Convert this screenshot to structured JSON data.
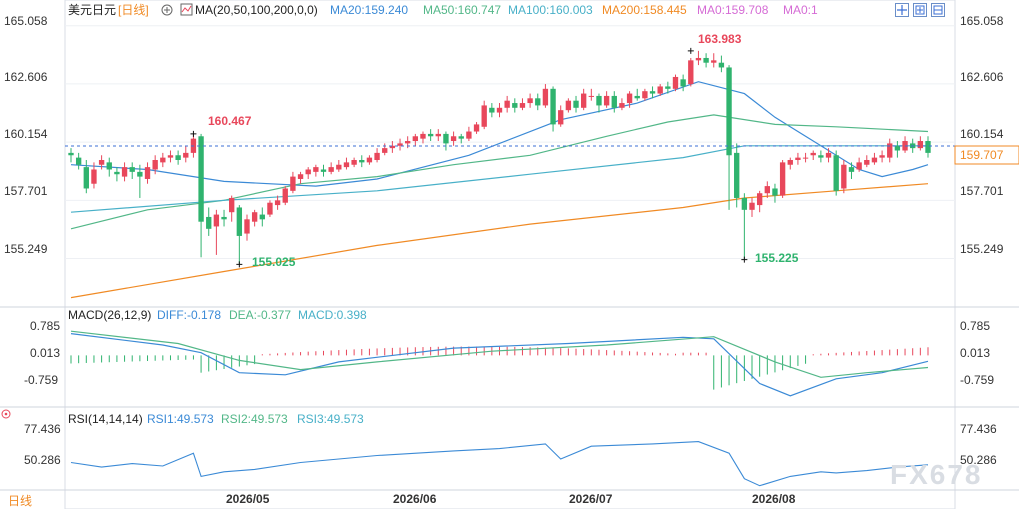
{
  "header": {
    "symbol": "美元日元",
    "period": "[日线]",
    "ma_label": "MA(20,50,100,200,0,0)",
    "ma20": "MA20:159.240",
    "ma50": "MA50:160.747",
    "ma100": "MA100:160.003",
    "ma200": "MA200:158.445",
    "ma0a": "MA0:159.708",
    "ma0b": "MA0:1"
  },
  "macd": {
    "label": "MACD(26,12,9)",
    "diff": "DIFF:-0.178",
    "dea": "DEA:-0.377",
    "macd": "MACD:0.398",
    "ticks": [
      "0.785",
      "0.013",
      "-0.759"
    ]
  },
  "rsi": {
    "label": "RSI(14,14,14)",
    "rsi1": "RSI1:49.573",
    "rsi2": "RSI2:49.573",
    "rsi3": "RSI3:49.573",
    "ticks": [
      "77.436",
      "50.286"
    ]
  },
  "footer": {
    "period_tab": "日线",
    "watermark": "FX678"
  },
  "colors": {
    "up": "#e8475b",
    "down": "#2fb36e",
    "ma20": "#3b8ad6",
    "ma50": "#52b788",
    "ma100": "#48b0c8",
    "ma200": "#f08a24",
    "current": "#f08a24"
  },
  "chart_data": {
    "type": "candlestick",
    "y_ticks": [
      "165.058",
      "162.606",
      "160.154",
      "157.701",
      "155.249"
    ],
    "y_range": [
      153.5,
      165.3
    ],
    "x_labels": [
      "2026/05",
      "2026/06",
      "2026/07",
      "2026/08"
    ],
    "current_price": "159.707",
    "annotations": {
      "high": "163.983",
      "low1": "155.025",
      "low2": "155.225",
      "mark1": "160.467"
    },
    "candles": [
      [
        159.7,
        159.6,
        159.9,
        159.3
      ],
      [
        159.5,
        159.2,
        159.7,
        159.0
      ],
      [
        159.1,
        158.2,
        159.4,
        158.0
      ],
      [
        158.4,
        159.0,
        159.3,
        158.2
      ],
      [
        159.2,
        159.4,
        159.6,
        159.0
      ],
      [
        159.3,
        159.0,
        159.5,
        158.7
      ],
      [
        158.9,
        158.8,
        159.1,
        158.5
      ],
      [
        158.7,
        159.1,
        159.3,
        158.5
      ],
      [
        159.1,
        158.9,
        159.3,
        158.6
      ],
      [
        158.9,
        158.7,
        159.2,
        157.8
      ],
      [
        158.6,
        159.1,
        159.3,
        158.4
      ],
      [
        159.0,
        159.4,
        159.6,
        158.8
      ],
      [
        159.3,
        159.5,
        159.7,
        159.1
      ],
      [
        159.5,
        159.6,
        159.8,
        159.3
      ],
      [
        159.6,
        159.4,
        159.8,
        159.2
      ],
      [
        159.5,
        159.7,
        160.0,
        159.3
      ],
      [
        159.7,
        160.3,
        160.5,
        159.5
      ],
      [
        160.4,
        156.8,
        160.5,
        155.3
      ],
      [
        157.0,
        156.5,
        157.4,
        156.2
      ],
      [
        156.6,
        157.1,
        157.3,
        155.4
      ],
      [
        157.0,
        156.9,
        157.3,
        156.6
      ],
      [
        157.2,
        157.8,
        157.9,
        156.8
      ],
      [
        157.4,
        156.2,
        157.5,
        155.0
      ],
      [
        156.3,
        156.9,
        157.1,
        156.0
      ],
      [
        156.8,
        157.2,
        157.3,
        156.6
      ],
      [
        157.1,
        156.9,
        157.4,
        156.6
      ],
      [
        157.1,
        157.6,
        157.7,
        157.0
      ],
      [
        157.5,
        157.7,
        157.9,
        157.3
      ],
      [
        157.6,
        158.2,
        158.3,
        157.5
      ],
      [
        158.1,
        158.7,
        158.9,
        158.0
      ],
      [
        158.6,
        158.8,
        158.9,
        158.4
      ],
      [
        158.8,
        159.0,
        159.1,
        158.6
      ],
      [
        158.9,
        159.1,
        159.2,
        158.7
      ],
      [
        159.0,
        158.9,
        159.2,
        158.7
      ],
      [
        158.9,
        159.1,
        159.3,
        158.8
      ],
      [
        159.0,
        159.2,
        159.4,
        158.9
      ],
      [
        159.1,
        159.3,
        159.5,
        159.0
      ],
      [
        159.2,
        159.4,
        159.5,
        159.1
      ],
      [
        159.4,
        159.3,
        159.6,
        159.1
      ],
      [
        159.3,
        159.5,
        159.6,
        159.2
      ],
      [
        159.4,
        159.7,
        159.9,
        159.3
      ],
      [
        159.7,
        159.9,
        160.1,
        159.6
      ],
      [
        159.9,
        160.0,
        160.2,
        159.7
      ],
      [
        160.0,
        160.1,
        160.3,
        159.8
      ],
      [
        160.1,
        160.2,
        160.4,
        159.9
      ],
      [
        160.2,
        160.4,
        160.5,
        160.0
      ],
      [
        160.3,
        160.5,
        160.6,
        160.1
      ],
      [
        160.5,
        160.4,
        160.7,
        160.2
      ],
      [
        160.4,
        160.5,
        160.7,
        160.2
      ],
      [
        160.5,
        160.1,
        160.6,
        159.8
      ],
      [
        160.2,
        160.4,
        160.6,
        160.0
      ],
      [
        160.4,
        160.3,
        160.5,
        160.1
      ],
      [
        160.3,
        160.6,
        160.8,
        160.2
      ],
      [
        160.6,
        160.9,
        161.0,
        160.5
      ],
      [
        160.8,
        161.7,
        161.9,
        160.7
      ],
      [
        161.6,
        161.4,
        161.8,
        161.2
      ],
      [
        161.4,
        161.6,
        161.8,
        161.2
      ],
      [
        161.6,
        161.9,
        162.1,
        161.4
      ],
      [
        161.8,
        161.6,
        162.0,
        161.4
      ],
      [
        161.6,
        161.8,
        162.0,
        161.5
      ],
      [
        161.8,
        162.0,
        162.2,
        161.6
      ],
      [
        162.0,
        161.7,
        162.2,
        161.5
      ],
      [
        161.7,
        162.4,
        162.6,
        161.6
      ],
      [
        162.4,
        160.9,
        162.5,
        160.6
      ],
      [
        160.9,
        161.5,
        161.7,
        160.8
      ],
      [
        161.5,
        161.9,
        162.0,
        161.4
      ],
      [
        161.9,
        161.6,
        162.1,
        161.4
      ],
      [
        161.6,
        162.2,
        162.4,
        161.5
      ],
      [
        162.1,
        162.1,
        162.4,
        161.9
      ],
      [
        162.1,
        161.7,
        162.2,
        161.4
      ],
      [
        161.7,
        162.1,
        162.3,
        161.6
      ],
      [
        162.1,
        161.6,
        162.3,
        161.4
      ],
      [
        161.6,
        161.8,
        162.0,
        161.5
      ],
      [
        161.8,
        162.2,
        162.3,
        161.6
      ],
      [
        162.1,
        162.0,
        162.4,
        161.9
      ],
      [
        162.0,
        162.3,
        162.4,
        161.9
      ],
      [
        162.3,
        162.2,
        162.5,
        162.0
      ],
      [
        162.2,
        162.5,
        162.6,
        162.1
      ],
      [
        162.5,
        162.4,
        162.7,
        162.2
      ],
      [
        162.4,
        162.9,
        163.0,
        162.3
      ],
      [
        162.8,
        162.5,
        163.0,
        162.3
      ],
      [
        162.6,
        163.6,
        163.7,
        162.5
      ],
      [
        163.6,
        163.7,
        164.0,
        163.4
      ],
      [
        163.7,
        163.5,
        163.9,
        163.3
      ],
      [
        163.5,
        163.6,
        163.9,
        163.3
      ],
      [
        163.5,
        163.3,
        163.8,
        163.1
      ],
      [
        163.3,
        159.6,
        163.4,
        157.3
      ],
      [
        159.7,
        157.8,
        160.1,
        157.4
      ],
      [
        157.8,
        157.3,
        158.0,
        155.2
      ],
      [
        157.3,
        157.6,
        157.8,
        157.0
      ],
      [
        157.5,
        158.0,
        158.1,
        157.2
      ],
      [
        158.0,
        158.3,
        158.5,
        157.8
      ],
      [
        158.2,
        157.9,
        158.4,
        157.6
      ],
      [
        157.9,
        159.3,
        159.4,
        157.8
      ],
      [
        159.2,
        159.4,
        159.5,
        159.0
      ],
      [
        159.4,
        159.5,
        159.7,
        159.2
      ],
      [
        159.5,
        159.5,
        159.7,
        159.3
      ],
      [
        159.6,
        159.7,
        159.8,
        159.4
      ],
      [
        159.6,
        159.5,
        159.8,
        159.3
      ],
      [
        159.5,
        159.7,
        159.9,
        159.3
      ],
      [
        159.6,
        158.1,
        159.8,
        157.9
      ],
      [
        158.2,
        159.2,
        159.4,
        158.0
      ],
      [
        159.1,
        158.9,
        159.3,
        158.6
      ],
      [
        159.0,
        159.3,
        159.5,
        158.9
      ],
      [
        159.2,
        159.4,
        159.6,
        159.1
      ],
      [
        159.3,
        159.5,
        159.7,
        159.2
      ],
      [
        159.5,
        159.6,
        159.8,
        159.3
      ],
      [
        159.5,
        160.1,
        160.3,
        159.3
      ],
      [
        160.0,
        159.8,
        160.2,
        159.5
      ],
      [
        159.8,
        160.2,
        160.4,
        159.7
      ],
      [
        160.1,
        159.9,
        160.3,
        159.7
      ],
      [
        159.9,
        160.2,
        160.4,
        159.8
      ],
      [
        160.2,
        159.7,
        160.4,
        159.5
      ]
    ],
    "ma_lines": {
      "ma20": [
        [
          0,
          159.2
        ],
        [
          10,
          159.0
        ],
        [
          20,
          158.5
        ],
        [
          32,
          158.3
        ],
        [
          40,
          158.6
        ],
        [
          52,
          159.6
        ],
        [
          64,
          161.1
        ],
        [
          74,
          161.8
        ],
        [
          82,
          162.7
        ],
        [
          88,
          162.2
        ],
        [
          92,
          161.2
        ],
        [
          98,
          160.0
        ],
        [
          103,
          159.0
        ],
        [
          106,
          158.7
        ],
        [
          110,
          159.0
        ],
        [
          112,
          159.2
        ]
      ],
      "ma50": [
        [
          0,
          156.5
        ],
        [
          10,
          157.3
        ],
        [
          20,
          157.7
        ],
        [
          30,
          158.4
        ],
        [
          40,
          158.7
        ],
        [
          50,
          159.2
        ],
        [
          60,
          159.6
        ],
        [
          70,
          160.4
        ],
        [
          78,
          161.0
        ],
        [
          84,
          161.3
        ],
        [
          92,
          160.9
        ],
        [
          100,
          160.8
        ],
        [
          112,
          160.6
        ]
      ],
      "ma100": [
        [
          0,
          157.2
        ],
        [
          20,
          157.7
        ],
        [
          40,
          158.1
        ],
        [
          60,
          158.8
        ],
        [
          80,
          159.5
        ],
        [
          88,
          160.0
        ],
        [
          100,
          160.0
        ],
        [
          112,
          160.0
        ]
      ],
      "ma200": [
        [
          0,
          153.6
        ],
        [
          20,
          154.7
        ],
        [
          40,
          155.8
        ],
        [
          60,
          156.7
        ],
        [
          80,
          157.4
        ],
        [
          88,
          157.8
        ],
        [
          100,
          158.1
        ],
        [
          112,
          158.4
        ]
      ]
    }
  }
}
